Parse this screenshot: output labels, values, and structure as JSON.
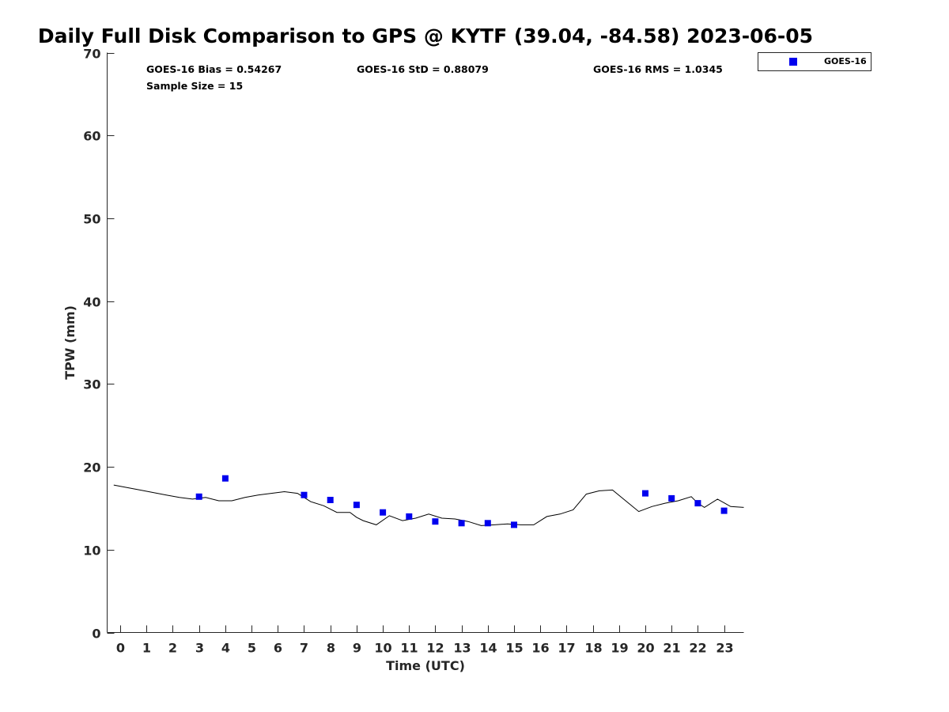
{
  "chart_data": {
    "type": "scatter",
    "title": "Daily Full Disk Comparison to GPS @ KYTF (39.04, -84.58) 2023-06-05",
    "xlabel": "Time (UTC)",
    "ylabel": "TPW (mm)",
    "xlim": [
      -0.5,
      23.75
    ],
    "ylim": [
      0,
      70
    ],
    "x_ticks": [
      0,
      1,
      2,
      3,
      4,
      5,
      6,
      7,
      8,
      9,
      10,
      11,
      12,
      13,
      14,
      15,
      16,
      17,
      18,
      19,
      20,
      21,
      22,
      23
    ],
    "y_ticks": [
      0,
      10,
      20,
      30,
      40,
      50,
      60,
      70
    ],
    "grid": false,
    "legend": {
      "placement": "top-right, outside plot",
      "entries": [
        "GOES-16"
      ]
    },
    "stats": [
      "GOES-16 Bias = 0.54267",
      "GOES-16 StD = 0.88079",
      "GOES-16 RMS = 1.0345",
      "Sample Size = 15"
    ],
    "series": [
      {
        "name": "GOES-16",
        "kind": "scatter",
        "marker": "square",
        "color": "#0000ee",
        "x": [
          3,
          4,
          7,
          8,
          9,
          10,
          11,
          12,
          13,
          14,
          15,
          20,
          21,
          22,
          23
        ],
        "y": [
          16.4,
          18.6,
          16.6,
          16.0,
          15.4,
          14.5,
          14.0,
          13.4,
          13.2,
          13.2,
          13.0,
          16.8,
          16.2,
          15.6,
          14.7
        ]
      },
      {
        "kind": "line",
        "color": "#000000",
        "x": [
          -0.25,
          0.75,
          1.75,
          2.25,
          2.75,
          3.25,
          3.75,
          4.25,
          4.75,
          5.25,
          5.75,
          6.25,
          6.75,
          7.0,
          7.25,
          7.75,
          8.25,
          8.75,
          9.0,
          9.25,
          9.75,
          10.25,
          10.75,
          11.25,
          11.75,
          12.25,
          12.75,
          13.25,
          13.75,
          14.25,
          14.75,
          15.25,
          15.75,
          16.25,
          16.75,
          17.25,
          17.75,
          18.25,
          18.75,
          19.25,
          19.75,
          20.25,
          20.75,
          21.25,
          21.75,
          22.0,
          22.25,
          22.75,
          23.25,
          23.75
        ],
        "y": [
          17.8,
          17.2,
          16.6,
          16.3,
          16.1,
          16.3,
          15.9,
          15.9,
          16.3,
          16.6,
          16.8,
          17.0,
          16.8,
          16.3,
          15.8,
          15.3,
          14.5,
          14.5,
          13.9,
          13.5,
          13.0,
          14.1,
          13.5,
          13.8,
          14.3,
          13.8,
          13.7,
          13.4,
          12.9,
          13.0,
          13.1,
          13.0,
          13.0,
          14.0,
          14.3,
          14.8,
          16.7,
          17.1,
          17.2,
          15.9,
          14.6,
          15.2,
          15.6,
          15.9,
          16.4,
          15.6,
          15.1,
          16.1,
          15.2,
          15.1
        ]
      }
    ]
  }
}
